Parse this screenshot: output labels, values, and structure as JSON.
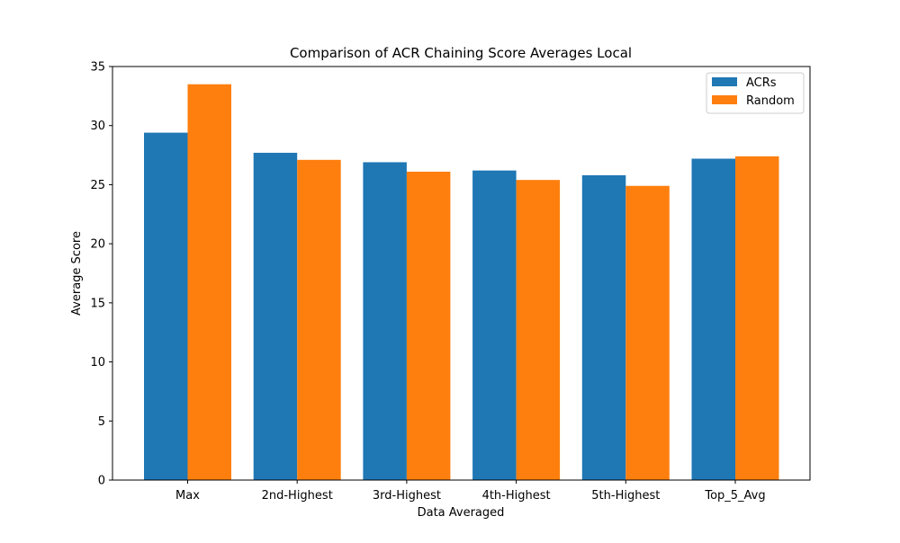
{
  "chart_data": {
    "type": "bar",
    "title": "Comparison of ACR Chaining Score Averages Local",
    "xlabel": "Data Averaged",
    "ylabel": "Average Score",
    "categories": [
      "Max",
      "2nd-Highest",
      "3rd-Highest",
      "4th-Highest",
      "5th-Highest",
      "Top_5_Avg"
    ],
    "series": [
      {
        "name": "ACRs",
        "color": "#1f77b4",
        "values": [
          29.4,
          27.7,
          26.9,
          26.2,
          25.8,
          27.2
        ]
      },
      {
        "name": "Random",
        "color": "#ff7f0e",
        "values": [
          33.5,
          27.1,
          26.1,
          25.4,
          24.9,
          27.4
        ]
      }
    ],
    "ylim": [
      0,
      35
    ],
    "yticks": [
      0,
      5,
      10,
      15,
      20,
      25,
      30,
      35
    ],
    "grid": false,
    "legend_position": "top-right"
  }
}
